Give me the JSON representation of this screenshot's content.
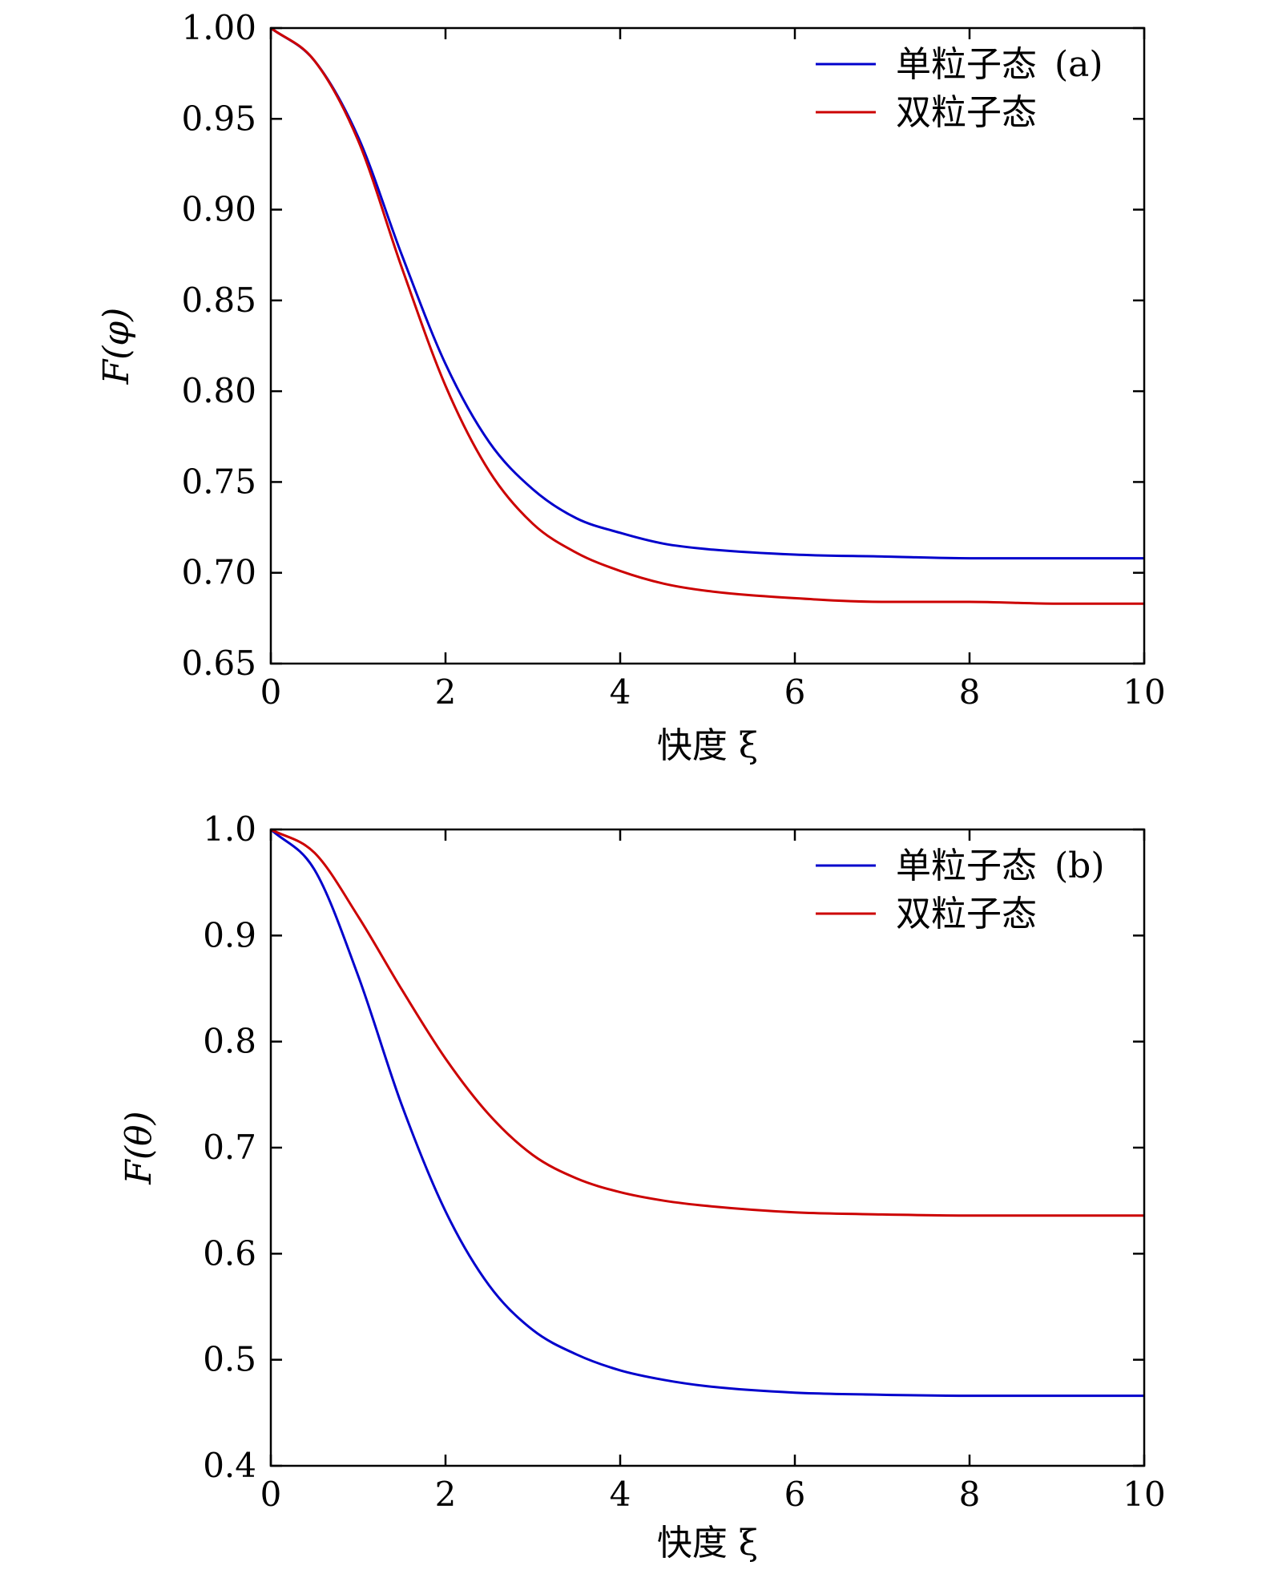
{
  "chart_data": [
    {
      "type": "line",
      "panel": "(a)",
      "xlabel": "快度 ξ",
      "ylabel": "F(φ)",
      "xlim": [
        0,
        10
      ],
      "ylim": [
        0.65,
        1.0
      ],
      "xticks": [
        "0",
        "2",
        "4",
        "6",
        "8",
        "10"
      ],
      "yticks": [
        "0.65",
        "0.70",
        "0.75",
        "0.80",
        "0.85",
        "0.90",
        "0.95",
        "1.00"
      ],
      "legend_position": "top-right",
      "series": [
        {
          "name": "单粒子态",
          "color": "#0000cc",
          "x": [
            0,
            0.5,
            1,
            1.5,
            2,
            2.5,
            3,
            3.5,
            4,
            4.5,
            5,
            6,
            7,
            8,
            9,
            10
          ],
          "y": [
            1.0,
            0.982,
            0.94,
            0.875,
            0.815,
            0.772,
            0.746,
            0.73,
            0.722,
            0.716,
            0.713,
            0.71,
            0.709,
            0.708,
            0.708,
            0.708
          ]
        },
        {
          "name": "双粒子态",
          "color": "#cc0000",
          "x": [
            0,
            0.5,
            1,
            1.5,
            2,
            2.5,
            3,
            3.5,
            4,
            4.5,
            5,
            6,
            7,
            8,
            9,
            10
          ],
          "y": [
            1.0,
            0.982,
            0.938,
            0.868,
            0.803,
            0.756,
            0.727,
            0.711,
            0.701,
            0.694,
            0.69,
            0.686,
            0.684,
            0.684,
            0.683,
            0.683
          ]
        }
      ]
    },
    {
      "type": "line",
      "panel": "(b)",
      "xlabel": "快度 ξ",
      "ylabel": "F(θ)",
      "xlim": [
        0,
        10
      ],
      "ylim": [
        0.4,
        1.0
      ],
      "xticks": [
        "0",
        "2",
        "4",
        "6",
        "8",
        "10"
      ],
      "yticks": [
        "0.4",
        "0.5",
        "0.6",
        "0.7",
        "0.8",
        "0.9",
        "1.0"
      ],
      "legend_position": "top-right",
      "series": [
        {
          "name": "单粒子态",
          "color": "#0000cc",
          "x": [
            0,
            0.5,
            1,
            1.5,
            2,
            2.5,
            3,
            3.5,
            4,
            4.5,
            5,
            6,
            7,
            8,
            9,
            10
          ],
          "y": [
            1.0,
            0.962,
            0.862,
            0.74,
            0.64,
            0.57,
            0.528,
            0.505,
            0.49,
            0.481,
            0.475,
            0.469,
            0.467,
            0.466,
            0.466,
            0.466
          ]
        },
        {
          "name": "双粒子态",
          "color": "#cc0000",
          "x": [
            0,
            0.5,
            1,
            1.5,
            2,
            2.5,
            3,
            3.5,
            4,
            4.5,
            5,
            6,
            7,
            8,
            9,
            10
          ],
          "y": [
            1.0,
            0.978,
            0.918,
            0.849,
            0.784,
            0.731,
            0.693,
            0.671,
            0.658,
            0.65,
            0.645,
            0.639,
            0.637,
            0.636,
            0.636,
            0.636
          ]
        }
      ]
    }
  ]
}
